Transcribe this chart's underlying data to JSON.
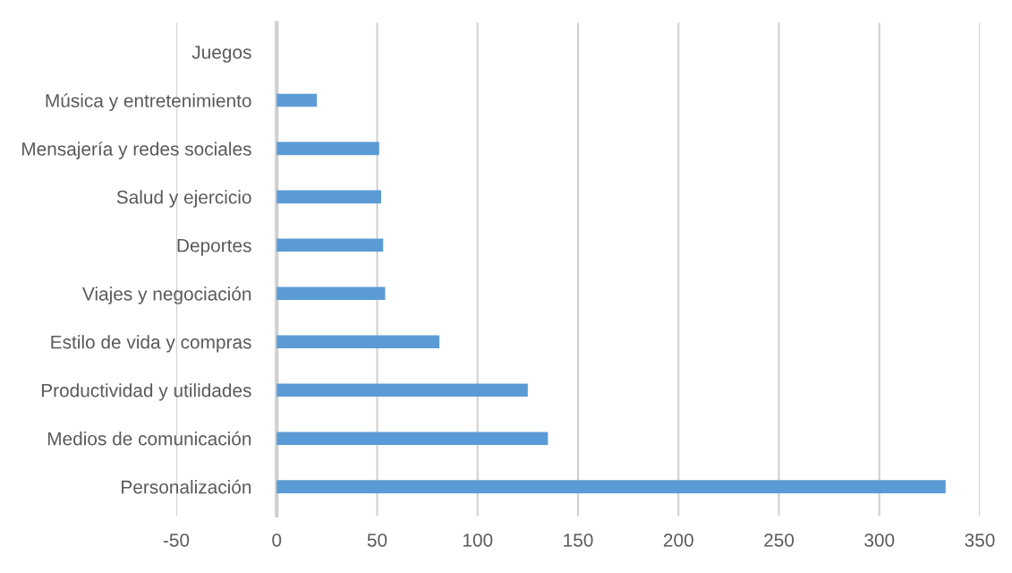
{
  "chart_data": {
    "type": "bar",
    "orientation": "horizontal",
    "categories": [
      "Juegos",
      "Música y entretenimiento",
      "Mensajería y redes sociales",
      "Salud y ejercicio",
      "Deportes",
      "Viajes y negociación",
      "Estilo de vida y compras",
      "Productividad y utilidades",
      "Medios de comunicación",
      "Personalización"
    ],
    "values": [
      0,
      20,
      51,
      52,
      53,
      54,
      81,
      125,
      135,
      333
    ],
    "color": "#5b9bd5",
    "xlim": [
      -50,
      350
    ],
    "xticks": [
      -50,
      0,
      50,
      100,
      150,
      200,
      250,
      300,
      350
    ],
    "grid": "x",
    "legend": false
  }
}
